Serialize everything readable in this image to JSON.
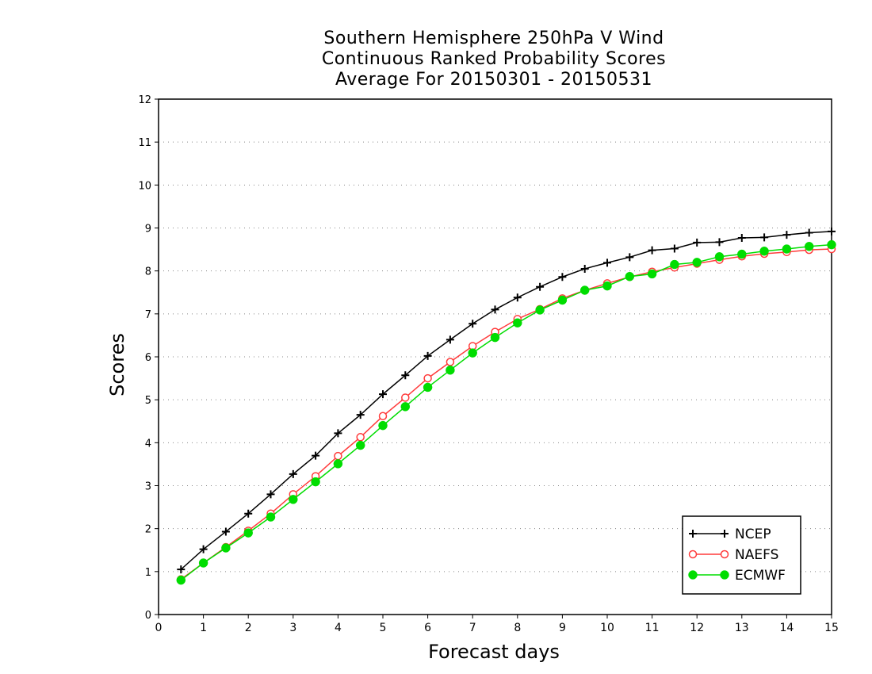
{
  "chart_data": {
    "type": "line",
    "title_lines": [
      "Southern Hemisphere 250hPa V Wind",
      "Continuous Ranked Probability Scores",
      "Average For 20150301 - 20150531"
    ],
    "xlabel": "Forecast days",
    "ylabel": "Scores",
    "xlim": [
      0,
      15
    ],
    "ylim": [
      0,
      12
    ],
    "xticks": [
      "0",
      "1",
      "2",
      "3",
      "4",
      "5",
      "6",
      "7",
      "8",
      "9",
      "10",
      "11",
      "12",
      "13",
      "14",
      "15"
    ],
    "yticks": [
      "0",
      "1",
      "2",
      "3",
      "4",
      "5",
      "6",
      "7",
      "8",
      "9",
      "10",
      "11",
      "12"
    ],
    "grid": "horizontal dotted",
    "legend_position": "bottom-right",
    "x": [
      0.5,
      1,
      1.5,
      2,
      2.5,
      3,
      3.5,
      4,
      4.5,
      5,
      5.5,
      6,
      6.5,
      7,
      7.5,
      8,
      8.5,
      9,
      9.5,
      10,
      10.5,
      11,
      11.5,
      12,
      12.5,
      13,
      13.5,
      14,
      14.5,
      15
    ],
    "series": [
      {
        "name": "NCEP",
        "color": "#000000",
        "marker": "plus",
        "values": [
          1.05,
          1.52,
          1.93,
          2.35,
          2.8,
          3.27,
          3.7,
          4.22,
          4.65,
          5.13,
          5.57,
          6.02,
          6.4,
          6.77,
          7.1,
          7.38,
          7.63,
          7.86,
          8.05,
          8.19,
          8.32,
          8.48,
          8.52,
          8.66,
          8.67,
          8.77,
          8.78,
          8.84,
          8.89,
          8.92
        ]
      },
      {
        "name": "NAEFS",
        "color": "#ff3b3b",
        "marker": "open-circle",
        "values": [
          0.82,
          1.2,
          1.57,
          1.95,
          2.35,
          2.8,
          3.22,
          3.69,
          4.13,
          4.62,
          5.05,
          5.5,
          5.88,
          6.25,
          6.58,
          6.88,
          7.11,
          7.36,
          7.55,
          7.71,
          7.86,
          7.98,
          8.08,
          8.17,
          8.26,
          8.34,
          8.4,
          8.44,
          8.49,
          8.51
        ]
      },
      {
        "name": "ECMWF",
        "color": "#00dd00",
        "marker": "filled-circle",
        "values": [
          0.8,
          1.2,
          1.55,
          1.9,
          2.27,
          2.68,
          3.09,
          3.51,
          3.94,
          4.4,
          4.84,
          5.29,
          5.69,
          6.09,
          6.45,
          6.79,
          7.09,
          7.32,
          7.55,
          7.65,
          7.87,
          7.93,
          8.15,
          8.2,
          8.33,
          8.39,
          8.46,
          8.51,
          8.57,
          8.61
        ]
      }
    ]
  }
}
